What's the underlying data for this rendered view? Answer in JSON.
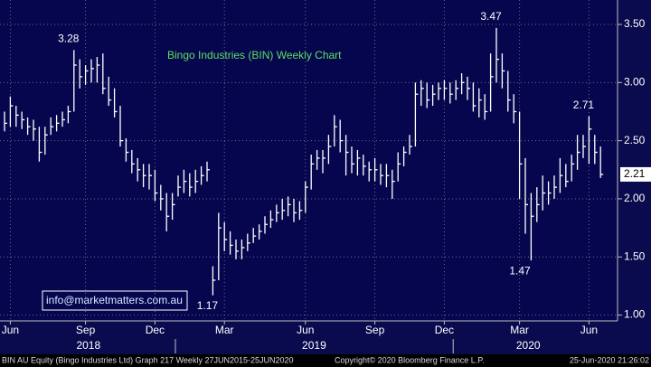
{
  "chart_data": {
    "type": "hlc",
    "title": "Bingo Industries (BIN) Weekly Chart",
    "contact": "info@marketmatters.com.au",
    "footer_left": "BIN AU Equity (Bingo Industries Ltd) Graph 217  Weekly 27JUN2015-25JUN2020",
    "footer_center": "Copyright© 2020 Bloomberg Finance L.P.",
    "footer_right": "25-Jun-2020 21:26:02",
    "color": "#ffffff",
    "categories": [
      null,
      "Jun",
      null,
      null,
      null,
      null,
      null,
      null,
      null,
      null,
      null,
      null,
      null,
      null,
      "Sep",
      null,
      null,
      null,
      null,
      null,
      null,
      null,
      null,
      null,
      null,
      null,
      "Dec",
      null,
      null,
      null,
      null,
      null,
      null,
      null,
      null,
      null,
      null,
      null,
      "Mar",
      null,
      null,
      null,
      null,
      null,
      null,
      null,
      null,
      null,
      null,
      null,
      null,
      null,
      "Jun",
      null,
      null,
      null,
      null,
      null,
      null,
      null,
      null,
      null,
      null,
      null,
      "Sep",
      null,
      null,
      null,
      null,
      null,
      null,
      null,
      null,
      null,
      null,
      null,
      "Dec",
      null,
      null,
      null,
      null,
      null,
      null,
      null,
      null,
      null,
      null,
      null,
      null,
      "Mar",
      null,
      null,
      null,
      null,
      null,
      null,
      null,
      null,
      null,
      null,
      null,
      "Jun",
      null,
      null
    ],
    "x_groups": [
      {
        "label": "2018",
        "range": [
          0,
          29
        ]
      },
      {
        "label": "2019",
        "range": [
          30,
          77
        ]
      },
      {
        "label": "2020",
        "range": [
          78,
          103
        ]
      }
    ],
    "high": [
      2.75,
      2.88,
      2.8,
      2.75,
      2.7,
      2.68,
      2.62,
      2.62,
      2.7,
      2.72,
      2.75,
      2.8,
      3.28,
      3.2,
      3.15,
      3.2,
      3.22,
      3.25,
      3.05,
      2.95,
      2.8,
      2.52,
      2.42,
      2.35,
      2.3,
      2.3,
      2.25,
      2.12,
      2.05,
      2.05,
      2.2,
      2.25,
      2.22,
      2.25,
      2.28,
      2.32,
      1.42,
      1.88,
      1.8,
      1.72,
      1.65,
      1.65,
      1.7,
      1.75,
      1.78,
      1.85,
      1.9,
      1.95,
      2.0,
      2.02,
      2.0,
      1.98,
      2.15,
      2.38,
      2.42,
      2.42,
      2.55,
      2.72,
      2.68,
      2.55,
      2.45,
      2.42,
      2.38,
      2.32,
      2.35,
      2.3,
      2.3,
      2.25,
      2.4,
      2.45,
      2.55,
      3.0,
      3.02,
      3.0,
      2.98,
      3.0,
      3.02,
      3.0,
      3.02,
      3.08,
      3.05,
      3.0,
      2.95,
      2.9,
      3.25,
      3.47,
      3.25,
      3.1,
      2.9,
      2.75,
      2.35,
      2.05,
      2.1,
      2.2,
      2.15,
      2.2,
      2.35,
      2.3,
      2.38,
      2.55,
      2.55,
      2.71,
      2.55,
      2.45
    ],
    "low": [
      2.58,
      2.62,
      2.62,
      2.6,
      2.55,
      2.5,
      2.32,
      2.38,
      2.55,
      2.58,
      2.62,
      2.65,
      2.75,
      2.95,
      2.98,
      3.0,
      3.0,
      2.9,
      2.8,
      2.7,
      2.45,
      2.32,
      2.22,
      2.15,
      2.1,
      2.08,
      1.98,
      1.9,
      1.72,
      1.82,
      2.02,
      2.05,
      2.02,
      2.05,
      2.12,
      2.15,
      1.17,
      1.3,
      1.55,
      1.52,
      1.48,
      1.48,
      1.55,
      1.62,
      1.65,
      1.7,
      1.75,
      1.8,
      1.82,
      1.85,
      1.8,
      1.82,
      1.88,
      2.08,
      2.25,
      2.22,
      2.3,
      2.45,
      2.4,
      2.2,
      2.22,
      2.2,
      2.2,
      2.15,
      2.15,
      2.12,
      2.1,
      2.0,
      2.15,
      2.28,
      2.38,
      2.45,
      2.8,
      2.78,
      2.8,
      2.85,
      2.85,
      2.82,
      2.85,
      2.9,
      2.85,
      2.75,
      2.7,
      2.68,
      2.75,
      3.0,
      2.95,
      2.75,
      2.65,
      2.0,
      1.7,
      1.47,
      1.8,
      1.9,
      1.95,
      2.0,
      2.05,
      2.1,
      2.15,
      2.25,
      2.35,
      2.3,
      2.3,
      2.18
    ],
    "close": [
      2.65,
      2.8,
      2.72,
      2.68,
      2.62,
      2.6,
      2.4,
      2.55,
      2.62,
      2.65,
      2.68,
      2.75,
      3.15,
      3.05,
      3.1,
      3.12,
      3.15,
      2.95,
      2.85,
      2.75,
      2.5,
      2.4,
      2.3,
      2.25,
      2.2,
      2.2,
      2.05,
      2.0,
      1.85,
      1.95,
      2.1,
      2.15,
      2.1,
      2.15,
      2.2,
      2.25,
      1.3,
      1.75,
      1.65,
      1.6,
      1.55,
      1.58,
      1.62,
      1.68,
      1.72,
      1.78,
      1.82,
      1.88,
      1.9,
      1.95,
      1.88,
      1.9,
      2.1,
      2.3,
      2.35,
      2.35,
      2.45,
      2.62,
      2.5,
      2.4,
      2.3,
      2.35,
      2.28,
      2.25,
      2.25,
      2.2,
      2.2,
      2.15,
      2.3,
      2.4,
      2.45,
      2.9,
      2.95,
      2.85,
      2.9,
      2.95,
      2.95,
      2.9,
      2.95,
      3.0,
      2.95,
      2.8,
      2.85,
      2.75,
      3.05,
      3.2,
      3.1,
      2.85,
      2.75,
      2.3,
      1.95,
      1.85,
      1.95,
      2.05,
      2.05,
      2.1,
      2.2,
      2.15,
      2.3,
      2.4,
      2.45,
      2.6,
      2.4,
      2.21
    ],
    "annotations": [
      {
        "label": "3.28",
        "value": 3.28,
        "index": 12
      },
      {
        "label": "3.47",
        "value": 3.47,
        "index": 85
      },
      {
        "label": "2.71",
        "value": 2.71,
        "index": 101
      },
      {
        "label": "1.17",
        "value": 1.17,
        "index": 36
      },
      {
        "label": "1.47",
        "value": 1.47,
        "index": 90
      }
    ],
    "last_price": 2.21,
    "ylim": [
      0.95,
      3.71
    ],
    "yticks": [
      {
        "value": 1,
        "label": "1.00"
      },
      {
        "value": 1.5,
        "label": "1.50"
      },
      {
        "value": 2,
        "label": "2.00"
      },
      {
        "value": 2.5,
        "label": "2.50"
      },
      {
        "value": 3,
        "label": "3.00"
      },
      {
        "value": 3.5,
        "label": "3.50"
      }
    ],
    "grid": true
  }
}
